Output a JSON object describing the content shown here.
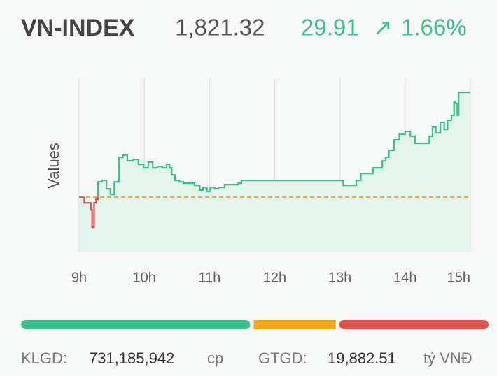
{
  "header": {
    "symbol": "VN-INDEX",
    "price": "1,821.32",
    "change": "29.91",
    "arrow": "↗",
    "change_percent": "1.66%"
  },
  "chart_data": {
    "type": "line",
    "y_label": "Values",
    "x": [
      9.0,
      9.08,
      9.16,
      9.18,
      9.2,
      9.23,
      9.26,
      9.29,
      9.35,
      9.42,
      9.48,
      9.54,
      9.61,
      9.67,
      9.74,
      9.83,
      9.91,
      9.99,
      10.06,
      10.13,
      10.2,
      10.28,
      10.34,
      10.39,
      10.42,
      10.47,
      10.54,
      10.6,
      10.69,
      10.77,
      10.85,
      10.9,
      10.96,
      11.01,
      11.08,
      11.14,
      11.23,
      11.33,
      11.44,
      11.49,
      12.09,
      13.0,
      13.05,
      13.16,
      13.25,
      13.32,
      13.43,
      13.51,
      13.59,
      13.65,
      13.7,
      13.75,
      13.83,
      13.91,
      14.0,
      14.08,
      14.15,
      14.24,
      14.32,
      14.37,
      14.42,
      14.47,
      14.54,
      14.6,
      14.65,
      14.71,
      14.75,
      14.77,
      14.8,
      14.82,
      15.0
    ],
    "series": [
      {
        "name": "VN-INDEX",
        "color": "#3cc08a",
        "below_color": "#e04848",
        "fill": "#e3f4ec",
        "values": [
          1791.41,
          1789.81,
          1789.81,
          1787.82,
          1782.84,
          1789.81,
          1790.81,
          1795.8,
          1796.2,
          1793.8,
          1792.21,
          1795.8,
          1802.78,
          1803.37,
          1801.78,
          1802.18,
          1800.78,
          1799.78,
          1801.38,
          1799.78,
          1800.18,
          1799.78,
          1800.78,
          1799.78,
          1797.79,
          1796.2,
          1795.8,
          1795.4,
          1795.4,
          1794.8,
          1793.4,
          1794.2,
          1793.01,
          1794.2,
          1793.8,
          1794.2,
          1795.0,
          1795.0,
          1795.4,
          1796.2,
          1796.2,
          1796.2,
          1794.8,
          1794.8,
          1796.2,
          1798.19,
          1798.19,
          1799.78,
          1799.78,
          1801.78,
          1802.78,
          1804.77,
          1807.76,
          1809.36,
          1810.15,
          1808.76,
          1806.76,
          1806.76,
          1806.76,
          1808.76,
          1811.35,
          1809.75,
          1812.75,
          1810.75,
          1813.34,
          1814.74,
          1818.73,
          1818.13,
          1814.74,
          1821.32,
          1821.32
        ]
      }
    ],
    "reference_line": {
      "value": 1791.41,
      "color": "#f0a818"
    },
    "xlim": [
      9,
      15
    ],
    "ylim": [
      1775.9,
      1825.1
    ],
    "xticks": [
      {
        "value": 9,
        "label": "9h"
      },
      {
        "value": 10,
        "label": "10h"
      },
      {
        "value": 11,
        "label": "11h"
      },
      {
        "value": 12,
        "label": "12h"
      },
      {
        "value": 13,
        "label": "13h"
      },
      {
        "value": 14,
        "label": "14h"
      },
      {
        "value": 15,
        "label": "15h"
      }
    ],
    "grid": true
  },
  "breadth": {
    "values": [
      327,
      117,
      213
    ],
    "colors": [
      "#3cc08a",
      "#f5aa1c",
      "#e8504c"
    ]
  },
  "footer": {
    "volume_label": "KLGD:",
    "volume": "731,185,942",
    "volume_unit": "cp",
    "value_label": "GTGD:",
    "value": "19,882.51",
    "value_unit": "tỷ VNĐ"
  }
}
